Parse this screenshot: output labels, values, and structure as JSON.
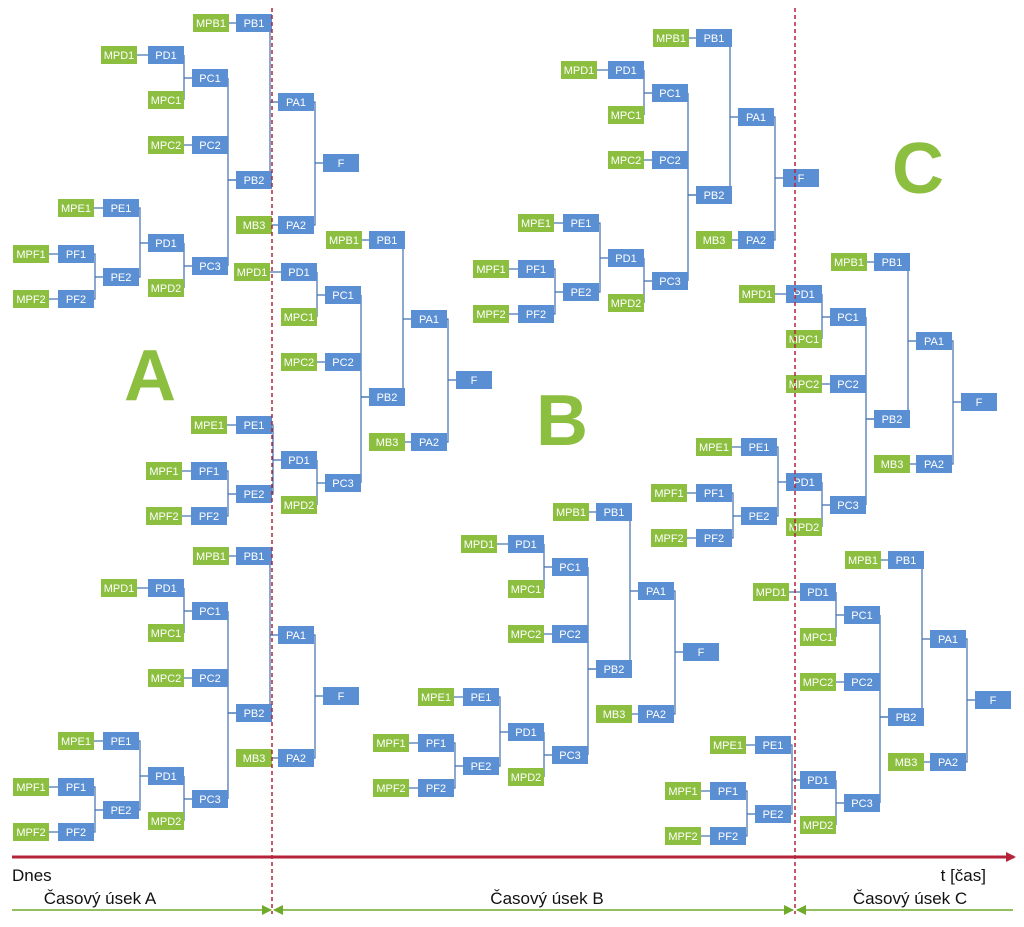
{
  "colors": {
    "green": "#8cbf3f",
    "blue": "#5b8fd3",
    "line": "#3f6fae",
    "divider": "#b3243a",
    "axis": "#b3243a",
    "span": "#6faa2a",
    "letter": "#8cbf3f"
  },
  "sections": [
    "A",
    "B",
    "C"
  ],
  "axis": {
    "start_label": "Dnes",
    "end_label": "t [čas]"
  },
  "spans": [
    "Časový úsek A",
    "Časový úsek B",
    "Časový úsek C"
  ],
  "node_labels": {
    "finals": "F",
    "tree_levels": [
      "PA1",
      "PA2",
      "PB1",
      "PB2",
      "PC1",
      "PC2",
      "PC3",
      "PD1",
      "PD2",
      "PE1",
      "PE2",
      "PF1",
      "PF2"
    ],
    "materials": [
      "MPB1",
      "MB3",
      "MPD1",
      "MPC1",
      "MPC2",
      "MPD2",
      "MPE1",
      "MPF1",
      "MPF2"
    ]
  }
}
